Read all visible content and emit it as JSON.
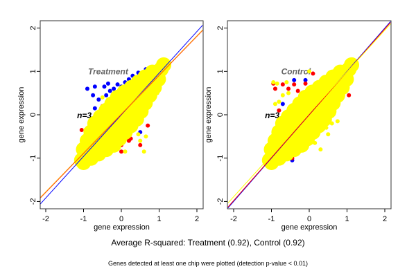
{
  "chart_data": [
    {
      "type": "scatter",
      "xlabel": "gene expression",
      "ylabel": "gene expression",
      "xlim": [
        -2.15,
        2.15
      ],
      "ylim": [
        -2.2,
        2.1
      ],
      "xticks": [
        "-2",
        "-1",
        "0",
        "1",
        "2"
      ],
      "yticks": [
        "-2",
        "-1",
        "0",
        "1",
        "2"
      ],
      "grid": false,
      "label": "Treatment",
      "n_label": "n=3",
      "lines": [
        {
          "color": "#0000ff",
          "slope": 0.96,
          "intercept": 0.0
        },
        {
          "color": "#ff0000",
          "slope": 0.9,
          "intercept": 0.01
        },
        {
          "color": "#ffa500",
          "slope": 0.9,
          "intercept": 0.02
        }
      ],
      "series": [
        {
          "color": "#0000ff",
          "points": [
            [
              -0.9,
              0.6
            ],
            [
              -0.75,
              0.45
            ],
            [
              -0.7,
              0.65
            ],
            [
              -0.45,
              0.65
            ],
            [
              -0.3,
              0.55
            ],
            [
              -0.1,
              0.7
            ],
            [
              0.1,
              0.75
            ],
            [
              0.3,
              0.9
            ],
            [
              0.45,
              0.97
            ],
            [
              0.65,
              1.05
            ],
            [
              0.9,
              1.1
            ],
            [
              -0.6,
              0.35
            ],
            [
              -0.4,
              0.45
            ],
            [
              -0.7,
              0.15
            ],
            [
              -0.2,
              0.6
            ],
            [
              0.0,
              0.65
            ],
            [
              0.5,
              -0.4
            ],
            [
              -1.1,
              -1.15
            ],
            [
              -0.8,
              -0.95
            ],
            [
              -0.55,
              -0.85
            ],
            [
              0.75,
              0.4
            ],
            [
              -0.35,
              0.72
            ],
            [
              0.2,
              0.82
            ]
          ]
        },
        {
          "color": "#ff0000",
          "points": [
            [
              -1.05,
              -0.35
            ],
            [
              -0.95,
              -0.65
            ],
            [
              -0.5,
              0.2
            ],
            [
              -0.3,
              0.35
            ],
            [
              0.0,
              -0.7
            ],
            [
              0.2,
              -0.6
            ],
            [
              0.5,
              -0.7
            ],
            [
              0.7,
              -0.25
            ],
            [
              0.75,
              0.5
            ],
            [
              0.8,
              0.55
            ],
            [
              0.0,
              -0.85
            ],
            [
              0.25,
              -0.55
            ],
            [
              -0.3,
              -0.75
            ],
            [
              0.8,
              0.95
            ],
            [
              0.6,
              0.6
            ],
            [
              -1.1,
              -0.95
            ],
            [
              -0.15,
              0.5
            ]
          ]
        },
        {
          "color": "#ffff00",
          "points": [
            [
              -1.05,
              -1.05
            ],
            [
              -1.0,
              -1.1
            ],
            [
              -0.9,
              -0.9
            ],
            [
              -1.0,
              -0.8
            ],
            [
              -0.8,
              -1.0
            ],
            [
              -0.75,
              -0.75
            ],
            [
              -0.9,
              -0.6
            ],
            [
              -0.6,
              -0.9
            ],
            [
              -0.6,
              -0.6
            ],
            [
              -0.8,
              -0.4
            ],
            [
              -0.4,
              -0.8
            ],
            [
              -0.45,
              -0.45
            ],
            [
              -0.7,
              -0.2
            ],
            [
              -0.2,
              -0.7
            ],
            [
              -0.57,
              -0.33
            ],
            [
              -0.33,
              -0.57
            ],
            [
              -0.3,
              -0.3
            ],
            [
              -0.55,
              -0.05
            ],
            [
              -0.05,
              -0.55
            ],
            [
              -0.42,
              -0.18
            ],
            [
              -0.18,
              -0.42
            ],
            [
              -0.15,
              -0.15
            ],
            [
              -0.4,
              0.1
            ],
            [
              0.1,
              -0.4
            ],
            [
              -0.27,
              -0.03
            ],
            [
              -0.03,
              -0.27
            ],
            [
              0,
              0
            ],
            [
              -0.25,
              0.25
            ],
            [
              0.25,
              -0.25
            ],
            [
              -0.12,
              0.12
            ],
            [
              0.12,
              -0.12
            ],
            [
              0.15,
              0.15
            ],
            [
              -0.1,
              0.4
            ],
            [
              0.4,
              -0.1
            ],
            [
              0.03,
              0.27
            ],
            [
              0.27,
              0.03
            ],
            [
              0.3,
              0.3
            ],
            [
              0.08,
              0.52
            ],
            [
              0.52,
              0.08
            ],
            [
              0.19,
              0.41
            ],
            [
              0.41,
              0.19
            ],
            [
              0.45,
              0.45
            ],
            [
              0.27,
              0.63
            ],
            [
              0.63,
              0.27
            ],
            [
              0.36,
              0.54
            ],
            [
              0.54,
              0.36
            ],
            [
              0.6,
              0.6
            ],
            [
              0.45,
              0.75
            ],
            [
              0.75,
              0.45
            ],
            [
              0.75,
              0.75
            ],
            [
              0.63,
              0.87
            ],
            [
              0.87,
              0.63
            ],
            [
              0.9,
              0.9
            ],
            [
              0.82,
              0.98
            ],
            [
              0.98,
              0.82
            ],
            [
              1.05,
              1.05
            ],
            [
              1.12,
              1.15
            ],
            [
              -0.95,
              -0.35
            ],
            [
              0.6,
              -0.85
            ],
            [
              0.1,
              -0.85
            ],
            [
              0.5,
              -0.6
            ],
            [
              0.65,
              -0.5
            ],
            [
              0.95,
              0.5
            ],
            [
              0.7,
              0.45
            ],
            [
              -0.5,
              0.4
            ],
            [
              -0.35,
              0.35
            ],
            [
              0.45,
              -0.45
            ]
          ]
        }
      ]
    },
    {
      "type": "scatter",
      "xlabel": "gene expression",
      "ylabel": "gene expression",
      "xlim": [
        -2.15,
        2.15
      ],
      "ylim": [
        -2.2,
        2.1
      ],
      "xticks": [
        "-2",
        "-1",
        "0",
        "1",
        "2"
      ],
      "yticks": [
        "-2",
        "-1",
        "0",
        "1",
        "2"
      ],
      "grid": false,
      "label": "Control",
      "n_label": "n=3",
      "lines": [
        {
          "color": "#0000ff",
          "slope": 1.0,
          "intercept": 0.0
        },
        {
          "color": "#ff0000",
          "slope": 0.99,
          "intercept": 0.0
        },
        {
          "color": "#ffff00",
          "slope": 0.96,
          "intercept": 0.03
        }
      ],
      "series": [
        {
          "color": "#0000ff",
          "points": [
            [
              -0.7,
              0.25
            ],
            [
              -0.4,
              0.8
            ],
            [
              -0.45,
              -1.05
            ],
            [
              0.35,
              -0.3
            ],
            [
              0.85,
              0.5
            ],
            [
              -0.9,
              -1.1
            ],
            [
              0.1,
              -0.45
            ],
            [
              -0.1,
              0.8
            ]
          ]
        },
        {
          "color": "#ff0000",
          "points": [
            [
              -0.95,
              0.72
            ],
            [
              -0.7,
              0.7
            ],
            [
              -0.4,
              0.7
            ],
            [
              -0.1,
              0.72
            ],
            [
              0.1,
              0.95
            ],
            [
              -0.45,
              -1.0
            ],
            [
              -0.7,
              -0.9
            ],
            [
              1.05,
              0.45
            ],
            [
              -0.8,
              0.1
            ],
            [
              -0.9,
              0.6
            ],
            [
              -0.55,
              0.6
            ],
            [
              -1.0,
              -1.05
            ],
            [
              -0.3,
              0.55
            ]
          ]
        },
        {
          "color": "#ffff00",
          "points": [
            [
              -1.05,
              -1.05
            ],
            [
              -1.0,
              -1.1
            ],
            [
              -0.9,
              -0.9
            ],
            [
              -1.0,
              -0.8
            ],
            [
              -0.8,
              -1.0
            ],
            [
              -0.75,
              -0.75
            ],
            [
              -0.9,
              -0.6
            ],
            [
              -0.6,
              -0.9
            ],
            [
              -0.6,
              -0.6
            ],
            [
              -0.8,
              -0.4
            ],
            [
              -0.4,
              -0.8
            ],
            [
              -0.45,
              -0.45
            ],
            [
              -0.7,
              -0.2
            ],
            [
              -0.2,
              -0.7
            ],
            [
              -0.57,
              -0.33
            ],
            [
              -0.33,
              -0.57
            ],
            [
              -0.3,
              -0.3
            ],
            [
              -0.55,
              -0.05
            ],
            [
              -0.05,
              -0.55
            ],
            [
              -0.42,
              -0.18
            ],
            [
              -0.18,
              -0.42
            ],
            [
              -0.15,
              -0.15
            ],
            [
              -0.4,
              0.1
            ],
            [
              0.1,
              -0.4
            ],
            [
              -0.27,
              -0.03
            ],
            [
              -0.03,
              -0.27
            ],
            [
              0,
              0
            ],
            [
              -0.25,
              0.25
            ],
            [
              0.25,
              -0.25
            ],
            [
              -0.12,
              0.12
            ],
            [
              0.12,
              -0.12
            ],
            [
              0.15,
              0.15
            ],
            [
              -0.1,
              0.4
            ],
            [
              0.4,
              -0.1
            ],
            [
              0.03,
              0.27
            ],
            [
              0.27,
              0.03
            ],
            [
              0.3,
              0.3
            ],
            [
              0.08,
              0.52
            ],
            [
              0.52,
              0.08
            ],
            [
              0.19,
              0.41
            ],
            [
              0.41,
              0.19
            ],
            [
              0.45,
              0.45
            ],
            [
              0.27,
              0.63
            ],
            [
              0.63,
              0.27
            ],
            [
              0.36,
              0.54
            ],
            [
              0.54,
              0.36
            ],
            [
              0.6,
              0.6
            ],
            [
              0.45,
              0.75
            ],
            [
              0.75,
              0.45
            ],
            [
              0.75,
              0.75
            ],
            [
              0.63,
              0.87
            ],
            [
              0.87,
              0.63
            ],
            [
              0.9,
              0.9
            ],
            [
              0.82,
              0.98
            ],
            [
              0.98,
              0.82
            ],
            [
              1.05,
              1.05
            ],
            [
              1.12,
              1.15
            ],
            [
              -0.95,
              0.75
            ],
            [
              -0.85,
              0.72
            ],
            [
              -0.6,
              0.75
            ],
            [
              -0.9,
              0.25
            ],
            [
              -0.8,
              0.3
            ],
            [
              0.6,
              -0.2
            ],
            [
              0.75,
              -0.15
            ],
            [
              0.5,
              -0.45
            ],
            [
              0.3,
              -0.8
            ],
            [
              0.15,
              -0.65
            ],
            [
              0.45,
              -0.3
            ],
            [
              0.0,
              1.0
            ],
            [
              -1.0,
              -0.6
            ],
            [
              0.95,
              0.85
            ],
            [
              -0.55,
              0.5
            ],
            [
              -0.7,
              0.45
            ]
          ]
        }
      ]
    }
  ],
  "annotations": {
    "summary": "Average R-squared: Treatment (0.92), Control (0.92)",
    "footnote": "Genes detected at least one chip were plotted (detection p-value < 0.01)"
  }
}
